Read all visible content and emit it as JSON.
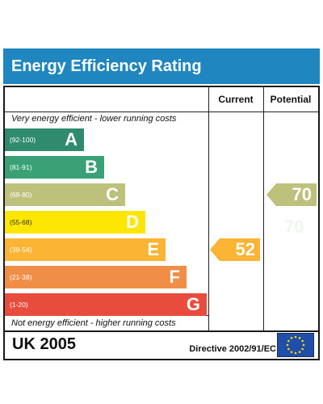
{
  "title": "Energy Efficiency Rating",
  "columns": {
    "current": "Current",
    "potential": "Potential"
  },
  "top_note": "Very energy efficient - lower running costs",
  "bottom_note": "Not energy efficient - higher running costs",
  "bands": [
    {
      "range": "(92-100)",
      "letter": "A",
      "color": "#2f8a6e"
    },
    {
      "range": "(81-91)",
      "letter": "B",
      "color": "#3aa176"
    },
    {
      "range": "(69-80)",
      "letter": "C",
      "color": "#bdc17b"
    },
    {
      "range": "(55-68)",
      "letter": "D",
      "color": "#fde601"
    },
    {
      "range": "(39-54)",
      "letter": "E",
      "color": "#fbb434"
    },
    {
      "range": "(21-38)",
      "letter": "F",
      "color": "#f08d47"
    },
    {
      "range": "(1-20)",
      "letter": "G",
      "color": "#e74c3c"
    }
  ],
  "current": {
    "value": "52",
    "band": "E",
    "color": "#fbb434"
  },
  "potential": {
    "value": "70",
    "band": "C",
    "color": "#bdc17b"
  },
  "footer": {
    "region": "UK 2005",
    "directive": "Directive 2002/91/EC",
    "flag_icon": "eu-flag-icon"
  }
}
